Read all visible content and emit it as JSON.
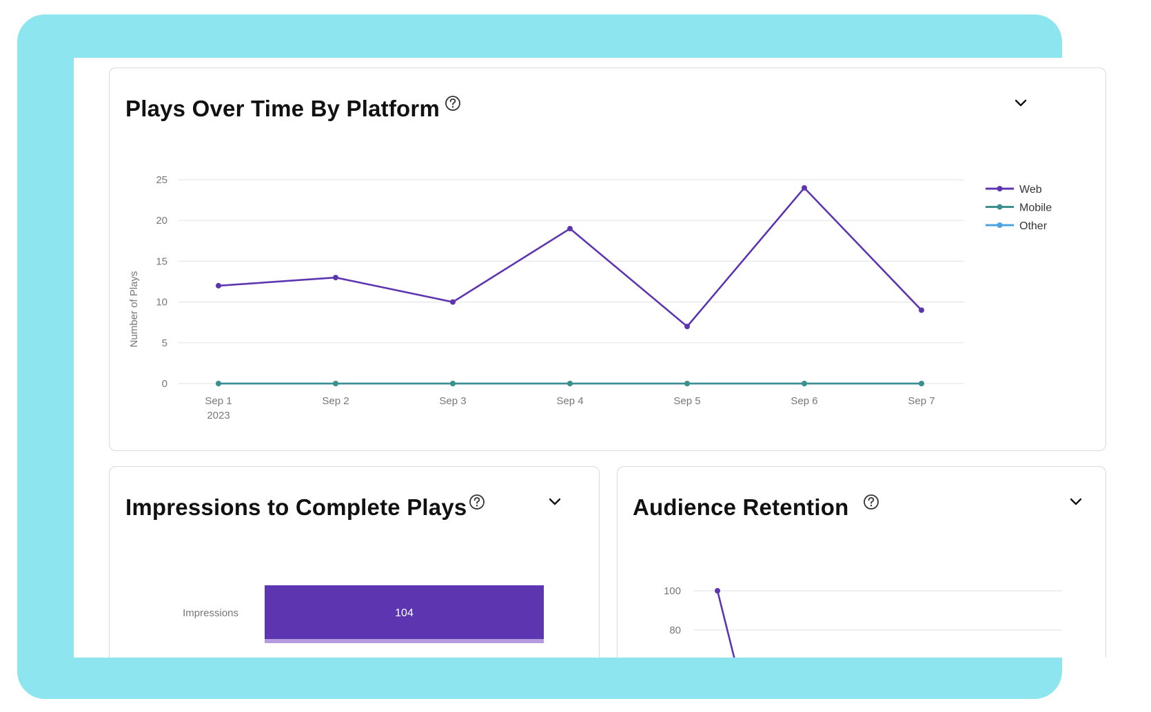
{
  "plays_card": {
    "title": "Plays Over Time By Platform",
    "help_icon": "question-circle-icon",
    "menu_icon": "chevron-down-icon"
  },
  "impressions_card": {
    "title": "Impressions to Complete Plays",
    "help_icon": "question-circle-icon",
    "menu_icon": "chevron-down-icon"
  },
  "retention_card": {
    "title": "Audience Retention",
    "help_icon": "question-circle-icon",
    "menu_icon": "chevron-down-icon"
  },
  "colors": {
    "background": "#8ce5ef",
    "web": "#5e35b1",
    "mobile": "#3d8f8f",
    "other": "#4ba3e3",
    "bar": "#5e35b1"
  },
  "chart_data": [
    {
      "type": "line",
      "title": "Plays Over Time By Platform",
      "ylabel": "Number of Plays",
      "xlabel": "",
      "categories": [
        "Sep 1",
        "Sep 2",
        "Sep 3",
        "Sep 4",
        "Sep 5",
        "Sep 6",
        "Sep 7"
      ],
      "first_category_sublabel": "2023",
      "ylim": [
        0,
        25
      ],
      "yticks": [
        0,
        5,
        10,
        15,
        20,
        25
      ],
      "grid": true,
      "legend_position": "right",
      "series": [
        {
          "name": "Web",
          "values": [
            12,
            13,
            10,
            19,
            7,
            24,
            9
          ]
        },
        {
          "name": "Mobile",
          "values": [
            0,
            0,
            0,
            0,
            0,
            0,
            0
          ]
        },
        {
          "name": "Other",
          "values": [
            0,
            0,
            0,
            0,
            0,
            0,
            0
          ]
        }
      ]
    },
    {
      "type": "bar",
      "title": "Impressions to Complete Plays",
      "orientation": "horizontal",
      "categories": [
        "Impressions"
      ],
      "values": [
        104
      ]
    },
    {
      "type": "line",
      "title": "Audience Retention",
      "yticks": [
        80,
        100
      ],
      "series": [
        {
          "values": [
            100
          ]
        }
      ]
    }
  ]
}
